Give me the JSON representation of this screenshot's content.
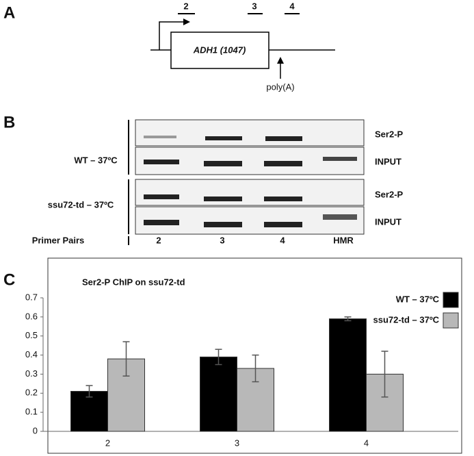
{
  "panel_a": {
    "label": "A",
    "primers": [
      "2",
      "3",
      "4"
    ],
    "gene": "ADH1 (1047)",
    "polya": "poly(A)"
  },
  "panel_b": {
    "label": "B",
    "conditions": [
      "WT – 37ºC",
      "ssu72-td – 37ºC"
    ],
    "rows": [
      "Ser2-P",
      "INPUT",
      "Ser2-P",
      "INPUT"
    ],
    "axis_label": "Primer Pairs",
    "lanes": [
      "2",
      "3",
      "4",
      "HMR"
    ]
  },
  "panel_c_label": "C",
  "chart_data": {
    "type": "bar",
    "title": "Ser2-P ChIP on ssu72-td",
    "categories": [
      "2",
      "3",
      "4"
    ],
    "series": [
      {
        "name": "WT – 37ºC",
        "color": "#000000",
        "values": [
          0.21,
          0.39,
          0.59
        ],
        "errors": [
          0.03,
          0.04,
          0.01
        ]
      },
      {
        "name": "ssu72-td – 37ºC",
        "color": "#b8b8b8",
        "values": [
          0.38,
          0.33,
          0.3
        ],
        "errors": [
          0.09,
          0.07,
          0.12
        ]
      }
    ],
    "ylim": [
      0,
      0.7
    ],
    "yticks": [
      0,
      0.1,
      0.2,
      0.3,
      0.4,
      0.5,
      0.6,
      0.7
    ],
    "grid": false,
    "legend": "upper right"
  }
}
